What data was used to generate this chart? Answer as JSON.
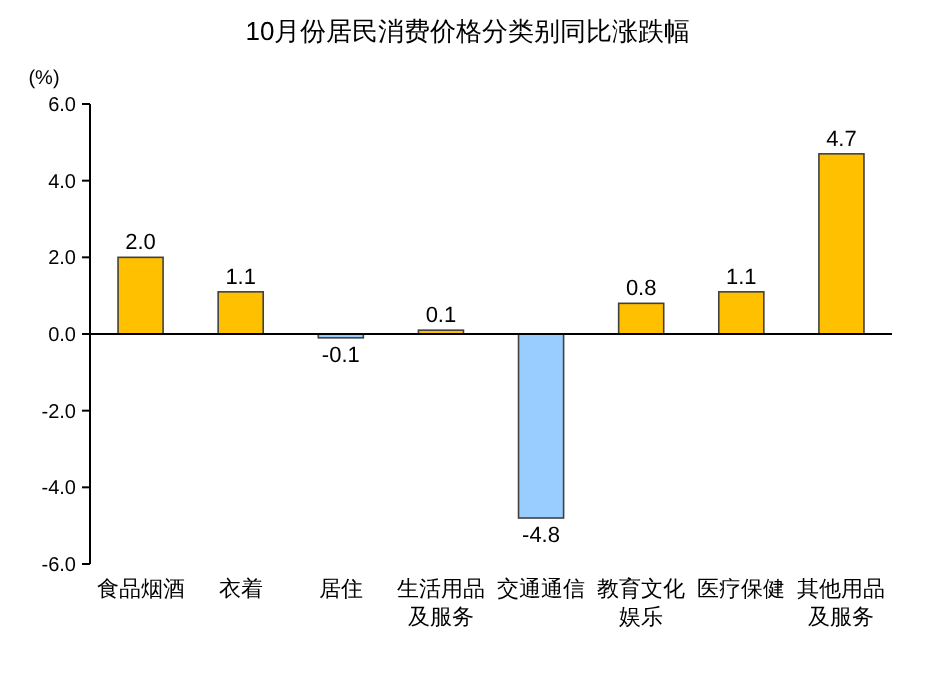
{
  "chart_data": {
    "type": "bar",
    "title": "10月份居民消费价格分类别同比涨跌幅",
    "ylabel": "(%)",
    "categories": [
      "食品烟酒",
      "衣着",
      "居住",
      "生活用品及服务",
      "交通通信",
      "教育文化娱乐",
      "医疗保健",
      "其他用品及服务"
    ],
    "values": [
      2.0,
      1.1,
      -0.1,
      0.1,
      -4.8,
      0.8,
      1.1,
      4.7
    ],
    "value_labels": [
      "2.0",
      "1.1",
      "-0.1",
      "0.1",
      "-4.8",
      "0.8",
      "1.1",
      "4.7"
    ],
    "colors": [
      "#ffc000",
      "#ffc000",
      "#99ccff",
      "#ffc000",
      "#99ccff",
      "#ffc000",
      "#ffc000",
      "#ffc000"
    ],
    "ylim": [
      -6,
      6
    ],
    "yticks": [
      {
        "value": -6,
        "label": "-6.0"
      },
      {
        "value": -4,
        "label": "-4.0"
      },
      {
        "value": -2,
        "label": "-2.0"
      },
      {
        "value": 0,
        "label": "0.0"
      },
      {
        "value": 2,
        "label": "2.0"
      },
      {
        "value": 4,
        "label": "4.0"
      },
      {
        "value": 6,
        "label": "6.0"
      }
    ]
  }
}
